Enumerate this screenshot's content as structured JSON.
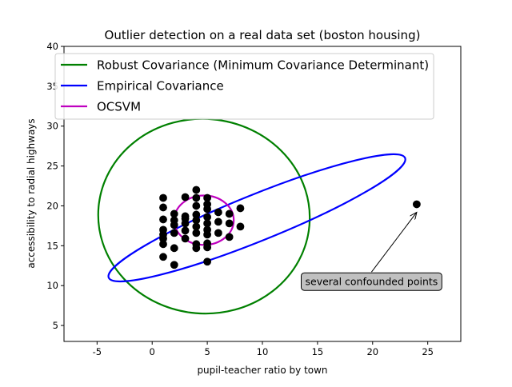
{
  "chart_data": {
    "type": "scatter",
    "title": "Outlier detection on a real data set (boston housing)",
    "xlabel": "pupil-teacher ratio by town",
    "ylabel": "accessibility to radial highways",
    "xlim": [
      -8,
      28
    ],
    "ylim": [
      3,
      40
    ],
    "xticks": [
      "-5",
      "0",
      "5",
      "10",
      "15",
      "20",
      "25"
    ],
    "yticks": [
      "5",
      "10",
      "15",
      "20",
      "25",
      "30",
      "35",
      "40"
    ],
    "grid": false,
    "legend_position": "upper-left",
    "points": [
      [
        1,
        21
      ],
      [
        1,
        19.8
      ],
      [
        1,
        18.3
      ],
      [
        1,
        17
      ],
      [
        1,
        16.4
      ],
      [
        1,
        15.9
      ],
      [
        1,
        15.2
      ],
      [
        1,
        13.6
      ],
      [
        2,
        19
      ],
      [
        2,
        18.2
      ],
      [
        2,
        17.6
      ],
      [
        2,
        16.6
      ],
      [
        2,
        14.7
      ],
      [
        2,
        12.6
      ],
      [
        3,
        21.1
      ],
      [
        3,
        18.7
      ],
      [
        3,
        18.4
      ],
      [
        3,
        17.8
      ],
      [
        3,
        16.9
      ],
      [
        3,
        15.9
      ],
      [
        4,
        22
      ],
      [
        4,
        21
      ],
      [
        4,
        20
      ],
      [
        4,
        18.9
      ],
      [
        4,
        18.2
      ],
      [
        4,
        17.4
      ],
      [
        4,
        16.6
      ],
      [
        4,
        15.2
      ],
      [
        4,
        14.7
      ],
      [
        5,
        21
      ],
      [
        5,
        20.2
      ],
      [
        5,
        19.6
      ],
      [
        5,
        18.6
      ],
      [
        5,
        17.8
      ],
      [
        5,
        17
      ],
      [
        5,
        16.4
      ],
      [
        5,
        15.3
      ],
      [
        5,
        14.8
      ],
      [
        5,
        13
      ],
      [
        6,
        19.2
      ],
      [
        6,
        18
      ],
      [
        6,
        16.6
      ],
      [
        7,
        19
      ],
      [
        7,
        17.8
      ],
      [
        7,
        16.1
      ],
      [
        8,
        19.7
      ],
      [
        8,
        17.4
      ],
      [
        24,
        20.2
      ]
    ],
    "point_color": "#000000",
    "series": [
      {
        "name": "Robust Covariance (Minimum Covariance Determinant)",
        "color": "#008000",
        "shape": "ellipse",
        "center": [
          4.7,
          18.7
        ],
        "axes": [
          9.6,
          12.2
        ],
        "angle_deg": -5
      },
      {
        "name": "Empirical Covariance",
        "color": "#0000ff",
        "shape": "ellipse",
        "center": [
          9.5,
          18.5
        ],
        "axes": [
          14.5,
          2.9
        ],
        "angle_deg": 22
      },
      {
        "name": "OCSVM",
        "color": "#bf00bf",
        "shape": "ellipse",
        "center": [
          4.7,
          18.2
        ],
        "axes": [
          2.7,
          3.1
        ],
        "angle_deg": 0
      }
    ],
    "annotations": [
      {
        "text": "several confounded points",
        "text_at": [
          19.9,
          10.5
        ],
        "arrow_to": [
          24,
          19.2
        ]
      }
    ]
  }
}
